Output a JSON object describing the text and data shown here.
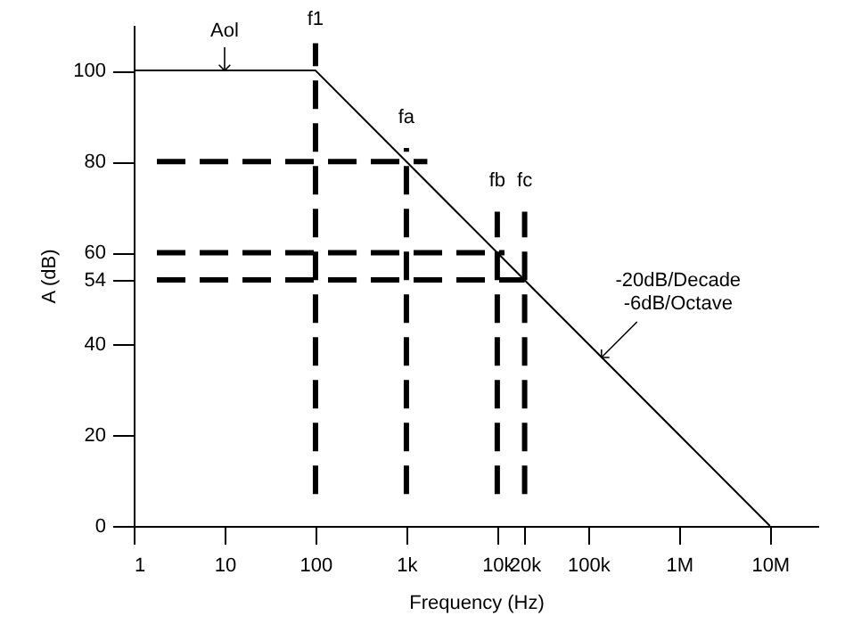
{
  "chart_data": {
    "type": "line",
    "xlabel": "Frequency (Hz)",
    "ylabel": "A (dB)",
    "log": "x",
    "grid": false,
    "marker": "none",
    "xlim": [
      1,
      34000000
    ],
    "ylim": [
      0,
      110
    ],
    "xticks": [
      1,
      10,
      100,
      {
        "value": 1000,
        "label": "1k"
      },
      {
        "value": 10000,
        "label": "10k"
      },
      {
        "value": 20000,
        "label": "20k"
      },
      {
        "value": 100000,
        "label": "100k"
      },
      {
        "value": 1000000,
        "label": "1M"
      },
      {
        "value": 10000000,
        "label": "10M"
      }
    ],
    "yticks": [
      0,
      20,
      40,
      54,
      60,
      80,
      100
    ],
    "series": [
      {
        "color": "#000000",
        "line_style": "solid",
        "x": [
          1,
          100,
          10000000
        ],
        "values": [
          100,
          100,
          0
        ]
      },
      {
        "color": "#000000",
        "line_style": "dashed",
        "x": [
          1.8,
          1700
        ],
        "values": [
          80,
          80
        ]
      },
      {
        "color": "#000000",
        "line_style": "dashed",
        "x": [
          1.8,
          12000
        ],
        "values": [
          60,
          60
        ]
      },
      {
        "color": "#000000",
        "line_style": "dashed",
        "x": [
          1.8,
          20000
        ],
        "values": [
          54,
          54
        ]
      },
      {
        "color": "#000000",
        "line_style": "dashed",
        "x": [
          100,
          100
        ],
        "values": [
          7,
          106
        ]
      },
      {
        "color": "#000000",
        "line_style": "dashed",
        "x": [
          1000,
          1000
        ],
        "values": [
          7,
          83
        ]
      },
      {
        "color": "#000000",
        "line_style": "dashed",
        "x": [
          10000,
          10000
        ],
        "values": [
          7,
          69
        ]
      },
      {
        "color": "#000000",
        "line_style": "dashed",
        "x": [
          20000,
          20000
        ],
        "values": [
          7,
          69
        ]
      }
    ],
    "annotations": [
      {
        "text": "Aol",
        "x": 10,
        "y": 100
      },
      {
        "text": "f1",
        "x": 100,
        "y": 106
      },
      {
        "text": "fa",
        "x": 1000,
        "y": 83
      },
      {
        "text": "fb",
        "x": 10000,
        "y": 69
      },
      {
        "text": "fc",
        "x": 20000,
        "y": 69
      },
      {
        "text": "-20dB/Decade\n-6dB/Octave",
        "x": 140000,
        "y": 37
      }
    ]
  }
}
